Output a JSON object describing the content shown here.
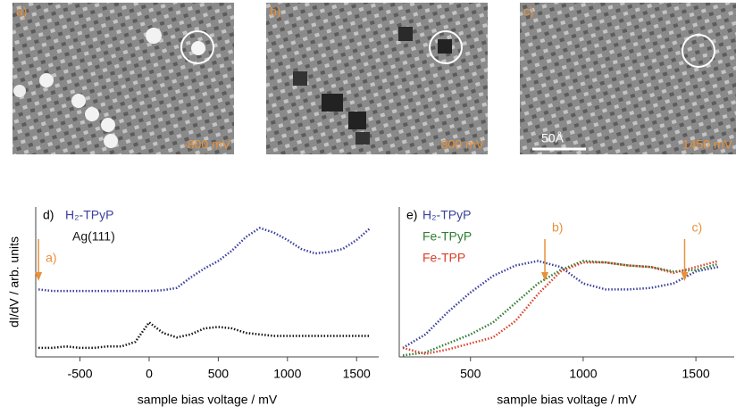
{
  "images": [
    {
      "label": "a)",
      "bias": "-800 mV"
    },
    {
      "label": "b)",
      "bias": "800 mV"
    },
    {
      "label": "c)",
      "bias": "1450 mV",
      "scale_bar": "50Å"
    }
  ],
  "chart_data": [
    {
      "type": "line",
      "panel": "d)",
      "ylabel": "dI/dV / arb. units",
      "xlabel": "sample bias voltage / mV",
      "x": [
        -800,
        -700,
        -600,
        -500,
        -400,
        -300,
        -200,
        -100,
        0,
        100,
        200,
        300,
        400,
        500,
        600,
        700,
        800,
        900,
        1000,
        1100,
        1200,
        1300,
        1400,
        1500,
        1600
      ],
      "series": [
        {
          "name": "H₂-TPyP",
          "color": "#3a3f9e",
          "values": [
            4.5,
            4.4,
            4.4,
            4.4,
            4.4,
            4.4,
            4.4,
            4.4,
            4.4,
            4.45,
            4.6,
            5.3,
            5.9,
            6.4,
            7.1,
            8.0,
            8.6,
            8.3,
            7.8,
            7.2,
            6.9,
            7.0,
            7.2,
            7.8,
            8.6
          ]
        },
        {
          "name": "Ag(111)",
          "color": "#111111",
          "values": [
            0.6,
            0.6,
            0.7,
            0.6,
            0.6,
            0.7,
            0.7,
            1.0,
            2.3,
            1.6,
            1.3,
            1.5,
            1.9,
            2.0,
            1.9,
            1.6,
            1.5,
            1.4,
            1.4,
            1.4,
            1.4,
            1.4,
            1.4,
            1.4,
            1.4
          ]
        }
      ],
      "annotations": [
        {
          "text": "a)",
          "x": -800
        }
      ],
      "xlim": [
        -820,
        1660
      ],
      "xticks": [
        -500,
        0,
        500,
        1000,
        1500
      ],
      "ylim": [
        0,
        10
      ]
    },
    {
      "type": "line",
      "panel": "e)",
      "xlabel": "sample bias voltage / mV",
      "x": [
        200,
        300,
        400,
        500,
        600,
        700,
        800,
        900,
        1000,
        1100,
        1200,
        1300,
        1400,
        1500,
        1600
      ],
      "series": [
        {
          "name": "H₂-TPyP",
          "color": "#3a3f9e",
          "values": [
            0.6,
            1.5,
            3.0,
            4.3,
            5.4,
            6.1,
            6.4,
            6.0,
            4.9,
            4.5,
            4.5,
            4.6,
            4.9,
            5.7,
            6.0
          ]
        },
        {
          "name": "Fe-TPyP",
          "color": "#2e7d32",
          "values": [
            0.1,
            0.3,
            0.9,
            1.5,
            2.3,
            3.6,
            4.9,
            5.8,
            6.4,
            6.3,
            6.1,
            6.0,
            5.7,
            5.8,
            6.2
          ]
        },
        {
          "name": "Fe-TPP",
          "color": "#d8402a",
          "values": [
            0.6,
            0.2,
            0.5,
            0.9,
            1.3,
            2.4,
            4.2,
            5.7,
            6.3,
            6.3,
            6.1,
            6.0,
            5.6,
            6.0,
            6.4
          ]
        }
      ],
      "annotations": [
        {
          "text": "b)",
          "x": 830
        },
        {
          "text": "c)",
          "x": 1450
        }
      ],
      "xlim": [
        184,
        1670
      ],
      "xticks": [
        500,
        1000,
        1500
      ],
      "ylim": [
        0,
        10
      ]
    }
  ]
}
